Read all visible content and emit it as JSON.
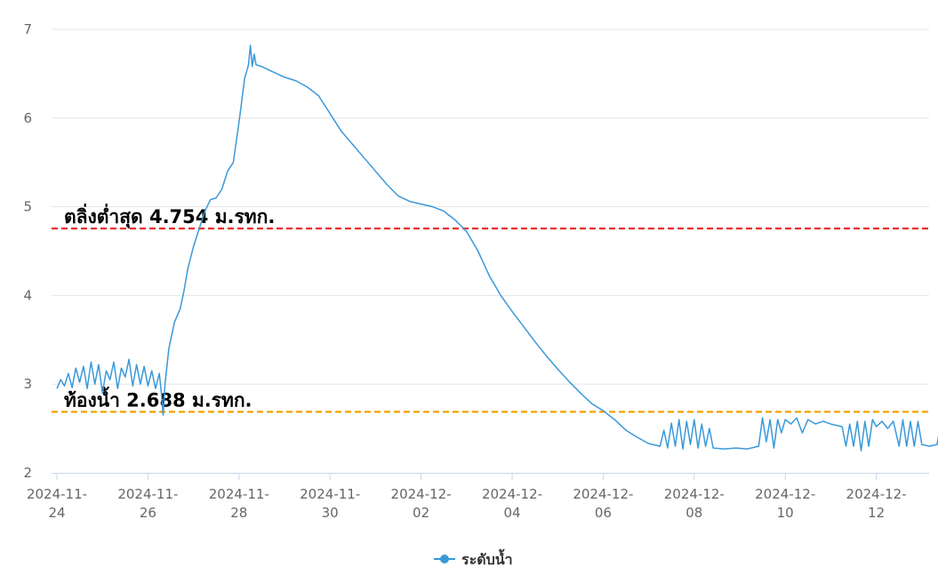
{
  "chart_data": {
    "type": "line",
    "title": "",
    "xlabel": "",
    "ylabel": "",
    "ylim": [
      2,
      7
    ],
    "xlim": [
      "2024-11-24",
      "2024-12-13T23:00"
    ],
    "grid": true,
    "legend_position": "bottom-center",
    "y_ticks": [
      2,
      3,
      4,
      5,
      6,
      7
    ],
    "x_ticks": [
      {
        "date": "2024-11-24",
        "line1": "2024-11-",
        "line2": "24"
      },
      {
        "date": "2024-11-26",
        "line1": "2024-11-",
        "line2": "26"
      },
      {
        "date": "2024-11-28",
        "line1": "2024-11-",
        "line2": "28"
      },
      {
        "date": "2024-11-30",
        "line1": "2024-11-",
        "line2": "30"
      },
      {
        "date": "2024-12-02",
        "line1": "2024-12-",
        "line2": "02"
      },
      {
        "date": "2024-12-04",
        "line1": "2024-12-",
        "line2": "04"
      },
      {
        "date": "2024-12-06",
        "line1": "2024-12-",
        "line2": "06"
      },
      {
        "date": "2024-12-08",
        "line1": "2024-12-",
        "line2": "08"
      },
      {
        "date": "2024-12-10",
        "line1": "2024-12-",
        "line2": "10"
      },
      {
        "date": "2024-12-12",
        "line1": "2024-12-",
        "line2": "12"
      }
    ],
    "series": [
      {
        "name": "ระดับน้ำ",
        "color": "#3a99d9",
        "points": [
          [
            "2024-11-24T00:00",
            2.95
          ],
          [
            "2024-11-24T02:00",
            3.05
          ],
          [
            "2024-11-24T04:00",
            2.98
          ],
          [
            "2024-11-24T06:00",
            3.12
          ],
          [
            "2024-11-24T08:00",
            2.96
          ],
          [
            "2024-11-24T10:00",
            3.18
          ],
          [
            "2024-11-24T12:00",
            3.02
          ],
          [
            "2024-11-24T14:00",
            3.2
          ],
          [
            "2024-11-24T16:00",
            2.95
          ],
          [
            "2024-11-24T18:00",
            3.25
          ],
          [
            "2024-11-24T20:00",
            3.0
          ],
          [
            "2024-11-24T22:00",
            3.22
          ],
          [
            "2024-11-25T00:00",
            2.9
          ],
          [
            "2024-11-25T02:00",
            3.15
          ],
          [
            "2024-11-25T04:00",
            3.05
          ],
          [
            "2024-11-25T06:00",
            3.25
          ],
          [
            "2024-11-25T08:00",
            2.95
          ],
          [
            "2024-11-25T10:00",
            3.18
          ],
          [
            "2024-11-25T12:00",
            3.08
          ],
          [
            "2024-11-25T14:00",
            3.28
          ],
          [
            "2024-11-25T16:00",
            2.98
          ],
          [
            "2024-11-25T18:00",
            3.22
          ],
          [
            "2024-11-25T20:00",
            3.0
          ],
          [
            "2024-11-25T22:00",
            3.2
          ],
          [
            "2024-11-26T00:00",
            2.98
          ],
          [
            "2024-11-26T02:00",
            3.15
          ],
          [
            "2024-11-26T04:00",
            2.95
          ],
          [
            "2024-11-26T06:00",
            3.12
          ],
          [
            "2024-11-26T07:00",
            2.92
          ],
          [
            "2024-11-26T08:00",
            2.65
          ],
          [
            "2024-11-26T09:00",
            3.0
          ],
          [
            "2024-11-26T11:00",
            3.4
          ],
          [
            "2024-11-26T14:00",
            3.7
          ],
          [
            "2024-11-26T17:00",
            3.85
          ],
          [
            "2024-11-26T19:00",
            4.05
          ],
          [
            "2024-11-26T21:00",
            4.3
          ],
          [
            "2024-11-27T00:00",
            4.55
          ],
          [
            "2024-11-27T03:00",
            4.75
          ],
          [
            "2024-11-27T06:00",
            4.95
          ],
          [
            "2024-11-27T09:00",
            5.08
          ],
          [
            "2024-11-27T12:00",
            5.1
          ],
          [
            "2024-11-27T15:00",
            5.2
          ],
          [
            "2024-11-27T18:00",
            5.4
          ],
          [
            "2024-11-27T21:00",
            5.5
          ],
          [
            "2024-11-28T00:00",
            5.95
          ],
          [
            "2024-11-28T03:00",
            6.45
          ],
          [
            "2024-11-28T05:00",
            6.6
          ],
          [
            "2024-11-28T06:00",
            6.82
          ],
          [
            "2024-11-28T07:00",
            6.58
          ],
          [
            "2024-11-28T08:00",
            6.72
          ],
          [
            "2024-11-28T09:00",
            6.6
          ],
          [
            "2024-11-28T12:00",
            6.58
          ],
          [
            "2024-11-28T18:00",
            6.52
          ],
          [
            "2024-11-29T00:00",
            6.46
          ],
          [
            "2024-11-29T06:00",
            6.42
          ],
          [
            "2024-11-29T12:00",
            6.35
          ],
          [
            "2024-11-29T18:00",
            6.25
          ],
          [
            "2024-11-30T00:00",
            6.05
          ],
          [
            "2024-11-30T06:00",
            5.85
          ],
          [
            "2024-11-30T12:00",
            5.7
          ],
          [
            "2024-11-30T18:00",
            5.55
          ],
          [
            "2024-12-01T00:00",
            5.4
          ],
          [
            "2024-12-01T06:00",
            5.25
          ],
          [
            "2024-12-01T12:00",
            5.12
          ],
          [
            "2024-12-01T18:00",
            5.06
          ],
          [
            "2024-12-02T00:00",
            5.03
          ],
          [
            "2024-12-02T06:00",
            5.0
          ],
          [
            "2024-12-02T12:00",
            4.95
          ],
          [
            "2024-12-02T18:00",
            4.85
          ],
          [
            "2024-12-03T00:00",
            4.72
          ],
          [
            "2024-12-03T06:00",
            4.5
          ],
          [
            "2024-12-03T12:00",
            4.22
          ],
          [
            "2024-12-03T18:00",
            4.0
          ],
          [
            "2024-12-04T00:00",
            3.82
          ],
          [
            "2024-12-04T06:00",
            3.65
          ],
          [
            "2024-12-04T12:00",
            3.48
          ],
          [
            "2024-12-04T18:00",
            3.32
          ],
          [
            "2024-12-05T00:00",
            3.17
          ],
          [
            "2024-12-05T06:00",
            3.03
          ],
          [
            "2024-12-05T12:00",
            2.9
          ],
          [
            "2024-12-05T18:00",
            2.78
          ],
          [
            "2024-12-06T00:00",
            2.7
          ],
          [
            "2024-12-06T06:00",
            2.6
          ],
          [
            "2024-12-06T12:00",
            2.48
          ],
          [
            "2024-12-06T18:00",
            2.4
          ],
          [
            "2024-12-07T00:00",
            2.33
          ],
          [
            "2024-12-07T06:00",
            2.3
          ],
          [
            "2024-12-07T08:00",
            2.48
          ],
          [
            "2024-12-07T10:00",
            2.28
          ],
          [
            "2024-12-07T12:00",
            2.56
          ],
          [
            "2024-12-07T14:00",
            2.3
          ],
          [
            "2024-12-07T16:00",
            2.6
          ],
          [
            "2024-12-07T18:00",
            2.27
          ],
          [
            "2024-12-07T20:00",
            2.58
          ],
          [
            "2024-12-07T22:00",
            2.32
          ],
          [
            "2024-12-08T00:00",
            2.6
          ],
          [
            "2024-12-08T02:00",
            2.28
          ],
          [
            "2024-12-08T04:00",
            2.55
          ],
          [
            "2024-12-08T06:00",
            2.3
          ],
          [
            "2024-12-08T08:00",
            2.5
          ],
          [
            "2024-12-08T10:00",
            2.28
          ],
          [
            "2024-12-08T16:00",
            2.27
          ],
          [
            "2024-12-08T22:00",
            2.28
          ],
          [
            "2024-12-09T04:00",
            2.27
          ],
          [
            "2024-12-09T10:00",
            2.3
          ],
          [
            "2024-12-09T12:00",
            2.62
          ],
          [
            "2024-12-09T14:00",
            2.35
          ],
          [
            "2024-12-09T16:00",
            2.6
          ],
          [
            "2024-12-09T18:00",
            2.28
          ],
          [
            "2024-12-09T20:00",
            2.6
          ],
          [
            "2024-12-09T22:00",
            2.45
          ],
          [
            "2024-12-10T00:00",
            2.6
          ],
          [
            "2024-12-10T03:00",
            2.55
          ],
          [
            "2024-12-10T06:00",
            2.62
          ],
          [
            "2024-12-10T09:00",
            2.45
          ],
          [
            "2024-12-10T12:00",
            2.6
          ],
          [
            "2024-12-10T16:00",
            2.55
          ],
          [
            "2024-12-10T20:00",
            2.58
          ],
          [
            "2024-12-11T00:00",
            2.55
          ],
          [
            "2024-12-11T06:00",
            2.52
          ],
          [
            "2024-12-11T08:00",
            2.3
          ],
          [
            "2024-12-11T10:00",
            2.55
          ],
          [
            "2024-12-11T12:00",
            2.3
          ],
          [
            "2024-12-11T14:00",
            2.58
          ],
          [
            "2024-12-11T16:00",
            2.25
          ],
          [
            "2024-12-11T18:00",
            2.58
          ],
          [
            "2024-12-11T20:00",
            2.3
          ],
          [
            "2024-12-11T22:00",
            2.6
          ],
          [
            "2024-12-12T00:00",
            2.52
          ],
          [
            "2024-12-12T03:00",
            2.58
          ],
          [
            "2024-12-12T06:00",
            2.5
          ],
          [
            "2024-12-12T09:00",
            2.58
          ],
          [
            "2024-12-12T12:00",
            2.3
          ],
          [
            "2024-12-12T14:00",
            2.6
          ],
          [
            "2024-12-12T16:00",
            2.3
          ],
          [
            "2024-12-12T18:00",
            2.58
          ],
          [
            "2024-12-12T20:00",
            2.3
          ],
          [
            "2024-12-12T22:00",
            2.58
          ],
          [
            "2024-12-13T00:00",
            2.32
          ],
          [
            "2024-12-13T04:00",
            2.3
          ],
          [
            "2024-12-13T08:00",
            2.32
          ],
          [
            "2024-12-13T10:00",
            2.55
          ]
        ]
      }
    ],
    "thresholds": [
      {
        "label": "ตลิ่งต่ำสุด 4.754 ม.รทก.",
        "value": 4.754,
        "color": "#e8302f"
      },
      {
        "label": "ท้องน้ำ 2.688 ม.รทก.",
        "value": 2.688,
        "color": "#f5a100"
      }
    ]
  }
}
